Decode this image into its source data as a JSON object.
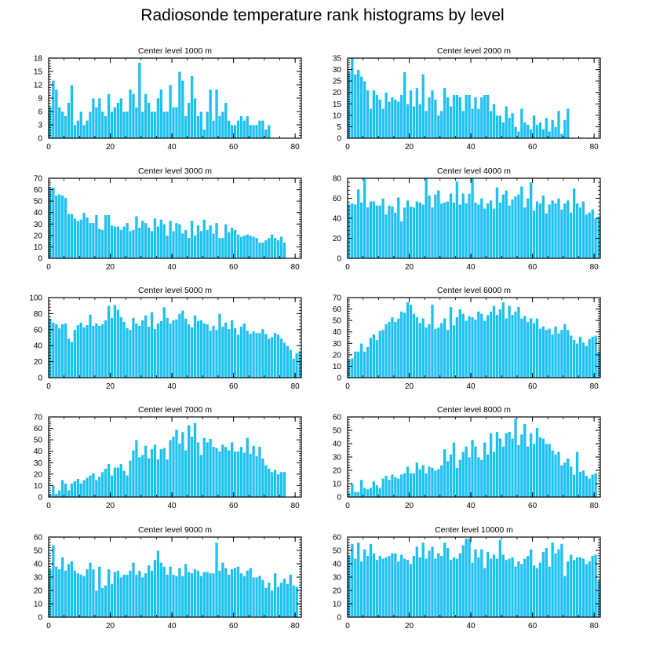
{
  "title": "Radiosonde temperature rank histograms by level",
  "colors": {
    "bar": "#1ec0f0",
    "bar_edge": "#ffffff",
    "axis": "#000000"
  },
  "chart_data": [
    {
      "type": "bar",
      "title": "Center level 1000 m",
      "ylim": [
        0,
        18
      ],
      "yticks": [
        0,
        3,
        6,
        9,
        12,
        15,
        18
      ],
      "xticks": [
        0,
        20,
        40,
        60,
        80
      ],
      "xlim": [
        0,
        82
      ],
      "values": [
        7,
        13,
        11,
        7,
        6,
        5,
        8,
        12,
        3,
        4,
        6,
        3,
        4,
        6,
        9,
        7,
        9,
        6,
        5,
        10,
        6,
        7,
        8,
        9,
        6,
        6,
        11,
        10,
        7,
        17,
        6,
        10,
        8,
        6,
        6,
        9,
        11,
        6,
        6,
        12,
        7,
        7,
        15,
        13,
        5,
        8,
        14,
        9,
        5,
        6,
        2,
        6,
        11,
        4,
        11,
        5,
        6,
        8,
        4,
        3,
        3,
        4,
        5,
        4,
        5,
        3,
        3,
        3,
        4,
        4,
        2,
        3
      ]
    },
    {
      "type": "bar",
      "title": "Center level 2000 m",
      "ylim": [
        0,
        35
      ],
      "yticks": [
        0,
        5,
        10,
        15,
        20,
        25,
        30,
        35
      ],
      "xticks": [
        0,
        20,
        40,
        60,
        80
      ],
      "xlim": [
        0,
        82
      ],
      "values": [
        29,
        35,
        28,
        30,
        27,
        25,
        21,
        13,
        21,
        19,
        17,
        13,
        20,
        16,
        18,
        17,
        16,
        19,
        29,
        15,
        21,
        14,
        22,
        15,
        28,
        12,
        18,
        21,
        17,
        10,
        12,
        22,
        18,
        14,
        19,
        19,
        18,
        12,
        19,
        19,
        13,
        18,
        13,
        18,
        19,
        19,
        12,
        15,
        10,
        10,
        7,
        14,
        9,
        11,
        5,
        3,
        13,
        7,
        6,
        4,
        10,
        6,
        7,
        4,
        9,
        3,
        8,
        5,
        12,
        2,
        8,
        13
      ]
    },
    {
      "type": "bar",
      "title": "Center level 3000 m",
      "ylim": [
        0,
        70
      ],
      "yticks": [
        0,
        10,
        20,
        30,
        40,
        50,
        60,
        70
      ],
      "xticks": [
        0,
        20,
        40,
        60,
        80
      ],
      "xlim": [
        0,
        82
      ],
      "values": [
        62,
        62,
        55,
        56,
        55,
        53,
        39,
        39,
        35,
        33,
        34,
        40,
        36,
        31,
        31,
        38,
        26,
        25,
        38,
        38,
        29,
        28,
        28,
        25,
        28,
        31,
        24,
        25,
        37,
        27,
        33,
        31,
        27,
        24,
        35,
        28,
        34,
        30,
        20,
        33,
        24,
        31,
        30,
        22,
        25,
        18,
        33,
        20,
        29,
        24,
        34,
        25,
        29,
        22,
        31,
        18,
        18,
        30,
        23,
        27,
        25,
        21,
        19,
        20,
        21,
        20,
        19,
        18,
        14,
        14,
        16,
        18,
        21,
        18,
        16,
        19,
        14
      ]
    },
    {
      "type": "bar",
      "title": "Center level 4000 m",
      "ylim": [
        0,
        80
      ],
      "yticks": [
        0,
        20,
        40,
        60,
        80
      ],
      "xticks": [
        0,
        20,
        40,
        60,
        80
      ],
      "xlim": [
        0,
        82
      ],
      "values": [
        54,
        55,
        54,
        69,
        56,
        80,
        51,
        57,
        57,
        53,
        53,
        60,
        44,
        53,
        52,
        46,
        61,
        37,
        51,
        58,
        52,
        51,
        57,
        56,
        54,
        80,
        63,
        51,
        64,
        68,
        55,
        56,
        57,
        65,
        56,
        77,
        54,
        65,
        55,
        65,
        80,
        56,
        54,
        60,
        50,
        55,
        58,
        50,
        71,
        56,
        64,
        68,
        53,
        59,
        62,
        64,
        72,
        51,
        60,
        76,
        48,
        57,
        55,
        63,
        45,
        54,
        58,
        55,
        60,
        49,
        55,
        58,
        46,
        70,
        55,
        51,
        57,
        44,
        46,
        49,
        40,
        42
      ]
    },
    {
      "type": "bar",
      "title": "Center level 5000 m",
      "ylim": [
        0,
        100
      ],
      "yticks": [
        0,
        20,
        40,
        60,
        80,
        100
      ],
      "xticks": [
        0,
        20,
        40,
        60,
        80
      ],
      "xlim": [
        0,
        82
      ],
      "values": [
        74,
        69,
        67,
        62,
        67,
        68,
        49,
        45,
        60,
        66,
        69,
        63,
        66,
        79,
        65,
        68,
        65,
        67,
        72,
        90,
        75,
        91,
        85,
        76,
        70,
        62,
        60,
        75,
        68,
        65,
        72,
        78,
        64,
        82,
        61,
        68,
        71,
        88,
        75,
        68,
        72,
        73,
        80,
        84,
        74,
        67,
        63,
        78,
        71,
        72,
        68,
        67,
        59,
        65,
        60,
        80,
        64,
        69,
        61,
        72,
        62,
        54,
        64,
        68,
        59,
        55,
        58,
        56,
        56,
        61,
        55,
        49,
        51,
        56,
        54,
        49,
        44,
        40,
        35,
        24,
        31,
        33
      ]
    },
    {
      "type": "bar",
      "title": "Center level 6000 m",
      "ylim": [
        0,
        70
      ],
      "yticks": [
        0,
        10,
        20,
        30,
        40,
        50,
        60,
        70
      ],
      "xticks": [
        0,
        20,
        40,
        60,
        80
      ],
      "xlim": [
        0,
        82
      ],
      "values": [
        16,
        17,
        23,
        23,
        30,
        23,
        27,
        35,
        38,
        33,
        41,
        42,
        47,
        49,
        53,
        49,
        52,
        58,
        57,
        66,
        64,
        56,
        53,
        48,
        52,
        44,
        47,
        64,
        43,
        44,
        48,
        52,
        42,
        62,
        46,
        53,
        60,
        56,
        50,
        54,
        53,
        51,
        58,
        56,
        50,
        55,
        58,
        63,
        55,
        60,
        66,
        52,
        63,
        55,
        58,
        62,
        52,
        54,
        49,
        52,
        48,
        52,
        43,
        45,
        42,
        43,
        38,
        45,
        39,
        42,
        47,
        42,
        37,
        33,
        30,
        36,
        31,
        28,
        34,
        36,
        37,
        23
      ]
    },
    {
      "type": "bar",
      "title": "Center level 7000 m",
      "ylim": [
        0,
        70
      ],
      "yticks": [
        0,
        10,
        20,
        30,
        40,
        50,
        60,
        70
      ],
      "xticks": [
        0,
        20,
        40,
        60,
        80
      ],
      "xlim": [
        0,
        82
      ],
      "values": [
        3,
        10,
        3,
        6,
        15,
        12,
        6,
        12,
        14,
        16,
        12,
        15,
        17,
        19,
        21,
        15,
        18,
        22,
        25,
        29,
        19,
        26,
        26,
        29,
        23,
        19,
        32,
        41,
        50,
        35,
        37,
        45,
        34,
        42,
        46,
        33,
        42,
        43,
        33,
        50,
        53,
        59,
        47,
        57,
        41,
        63,
        53,
        65,
        48,
        37,
        52,
        48,
        51,
        44,
        43,
        40,
        46,
        44,
        41,
        48,
        40,
        40,
        44,
        39,
        52,
        38,
        45,
        36,
        44,
        34,
        28,
        25,
        22,
        24,
        20,
        22,
        22
      ]
    },
    {
      "type": "bar",
      "title": "Center level 8000 m",
      "ylim": [
        0,
        60
      ],
      "yticks": [
        0,
        10,
        20,
        30,
        40,
        50,
        60
      ],
      "xticks": [
        0,
        20,
        40,
        60,
        80
      ],
      "xlim": [
        0,
        82
      ],
      "values": [
        3,
        10,
        4,
        4,
        13,
        7,
        6,
        7,
        12,
        9,
        7,
        14,
        16,
        13,
        17,
        15,
        14,
        17,
        18,
        23,
        18,
        18,
        26,
        21,
        24,
        18,
        23,
        22,
        20,
        21,
        24,
        36,
        27,
        32,
        41,
        22,
        28,
        34,
        38,
        30,
        43,
        38,
        30,
        28,
        41,
        32,
        48,
        34,
        49,
        44,
        38,
        48,
        49,
        44,
        59,
        39,
        47,
        55,
        38,
        48,
        40,
        52,
        45,
        44,
        40,
        40,
        35,
        32,
        34,
        24,
        26,
        29,
        23,
        17,
        34,
        19,
        20,
        16,
        14,
        17,
        18
      ]
    },
    {
      "type": "bar",
      "title": "Center level 9000 m",
      "ylim": [
        0,
        60
      ],
      "yticks": [
        0,
        10,
        20,
        30,
        40,
        50,
        60
      ],
      "xticks": [
        0,
        20,
        40,
        60,
        80
      ],
      "xlim": [
        0,
        82
      ],
      "values": [
        36,
        54,
        38,
        36,
        45,
        35,
        40,
        42,
        35,
        33,
        32,
        31,
        36,
        41,
        36,
        20,
        38,
        22,
        24,
        36,
        25,
        34,
        35,
        30,
        32,
        32,
        35,
        41,
        32,
        35,
        30,
        33,
        39,
        35,
        43,
        50,
        41,
        38,
        32,
        38,
        32,
        31,
        37,
        31,
        40,
        34,
        33,
        36,
        35,
        31,
        34,
        34,
        33,
        33,
        56,
        35,
        41,
        37,
        32,
        36,
        37,
        38,
        33,
        31,
        35,
        37,
        30,
        30,
        31,
        28,
        22,
        26,
        20,
        33,
        23,
        26,
        29,
        25,
        32,
        24,
        23
      ]
    },
    {
      "type": "bar",
      "title": "Center level 10000 m",
      "ylim": [
        0,
        60
      ],
      "yticks": [
        0,
        10,
        20,
        30,
        40,
        50,
        60
      ],
      "xticks": [
        0,
        20,
        40,
        60,
        80
      ],
      "xlim": [
        0,
        82
      ],
      "values": [
        46,
        55,
        44,
        56,
        42,
        51,
        46,
        55,
        48,
        43,
        46,
        44,
        45,
        46,
        48,
        48,
        42,
        47,
        44,
        43,
        40,
        46,
        53,
        45,
        56,
        44,
        50,
        53,
        44,
        48,
        46,
        56,
        52,
        43,
        45,
        44,
        48,
        54,
        59,
        59,
        41,
        51,
        45,
        51,
        37,
        49,
        44,
        47,
        44,
        58,
        47,
        43,
        44,
        45,
        38,
        42,
        40,
        44,
        46,
        51,
        39,
        37,
        41,
        49,
        52,
        38,
        56,
        48,
        51,
        55,
        31,
        42,
        47,
        43,
        45,
        45,
        44,
        40,
        42,
        46,
        47,
        28,
        46
      ]
    }
  ]
}
